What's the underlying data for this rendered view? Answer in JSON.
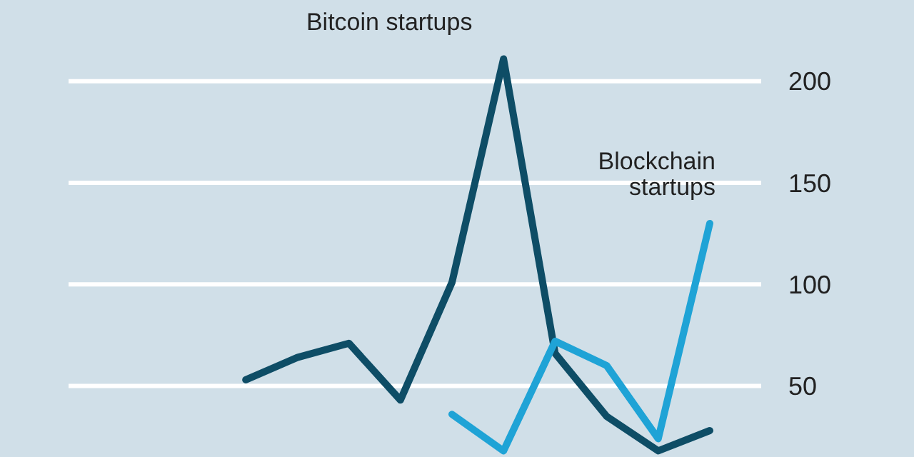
{
  "chart_data": {
    "type": "line",
    "categories": [
      null,
      null,
      null,
      null,
      null,
      null,
      null,
      null,
      null,
      null,
      null
    ],
    "series": [
      {
        "name": "Bitcoin startups",
        "color": "#0e4d66",
        "values": [
          null,
          53,
          64,
          71,
          43,
          101,
          211,
          66,
          35,
          18,
          28
        ]
      },
      {
        "name": "Blockchain startups",
        "color": "#1fa3d6",
        "values": [
          null,
          null,
          null,
          null,
          null,
          36,
          18,
          72,
          60,
          24,
          130
        ]
      }
    ],
    "ylim": [
      15,
      240
    ],
    "yticks": [
      50,
      100,
      150,
      200
    ],
    "grid": "y",
    "legend": false,
    "tick_labels": "y"
  }
}
